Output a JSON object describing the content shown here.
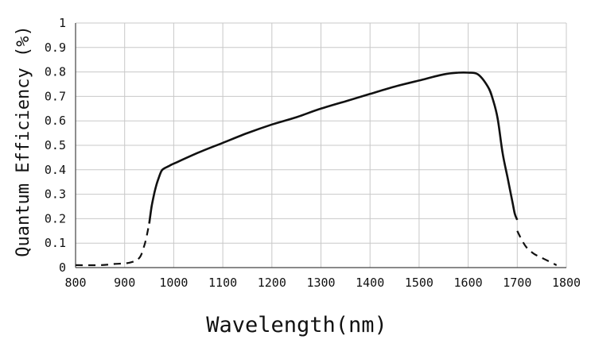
{
  "chart_data": {
    "type": "line",
    "xlabel": "Wavelength(nm)",
    "ylabel": "Quantum Efficiency (%)",
    "xlim": [
      800,
      1800
    ],
    "ylim": [
      0,
      1
    ],
    "x_ticks": [
      "800",
      "900",
      "1000",
      "1100",
      "1200",
      "1300",
      "1400",
      "1500",
      "1600",
      "1700",
      "1800"
    ],
    "y_ticks": [
      "0",
      "0.1",
      "0.2",
      "0.3",
      "0.4",
      "0.5",
      "0.6",
      "0.7",
      "0.8",
      "0.9",
      "1"
    ],
    "grid": true,
    "legend": false,
    "series": [
      {
        "style": "solid",
        "color": "#111111",
        "x": [
          950,
          955,
          960,
          965,
          970,
          975,
          980,
          990,
          1000,
          1050,
          1100,
          1150,
          1200,
          1250,
          1300,
          1350,
          1400,
          1450,
          1500,
          1550,
          1580,
          1600,
          1620,
          1640,
          1650,
          1660,
          1670,
          1680,
          1690,
          1695,
          1700
        ],
        "y": [
          0.18,
          0.25,
          0.3,
          0.34,
          0.37,
          0.395,
          0.405,
          0.415,
          0.425,
          0.47,
          0.51,
          0.55,
          0.585,
          0.615,
          0.65,
          0.68,
          0.71,
          0.74,
          0.765,
          0.79,
          0.797,
          0.797,
          0.79,
          0.74,
          0.69,
          0.61,
          0.47,
          0.37,
          0.27,
          0.22,
          0.195
        ]
      },
      {
        "style": "dashed",
        "color": "#111111",
        "x": [
          800,
          850,
          880,
          910,
          930,
          940,
          945,
          950
        ],
        "y": [
          0.01,
          0.01,
          0.015,
          0.02,
          0.04,
          0.09,
          0.13,
          0.18
        ]
      },
      {
        "style": "dashed",
        "color": "#111111",
        "x": [
          1700,
          1710,
          1720,
          1735,
          1750,
          1765,
          1775,
          1780
        ],
        "y": [
          0.15,
          0.11,
          0.08,
          0.055,
          0.04,
          0.025,
          0.015,
          0.01
        ]
      }
    ]
  }
}
